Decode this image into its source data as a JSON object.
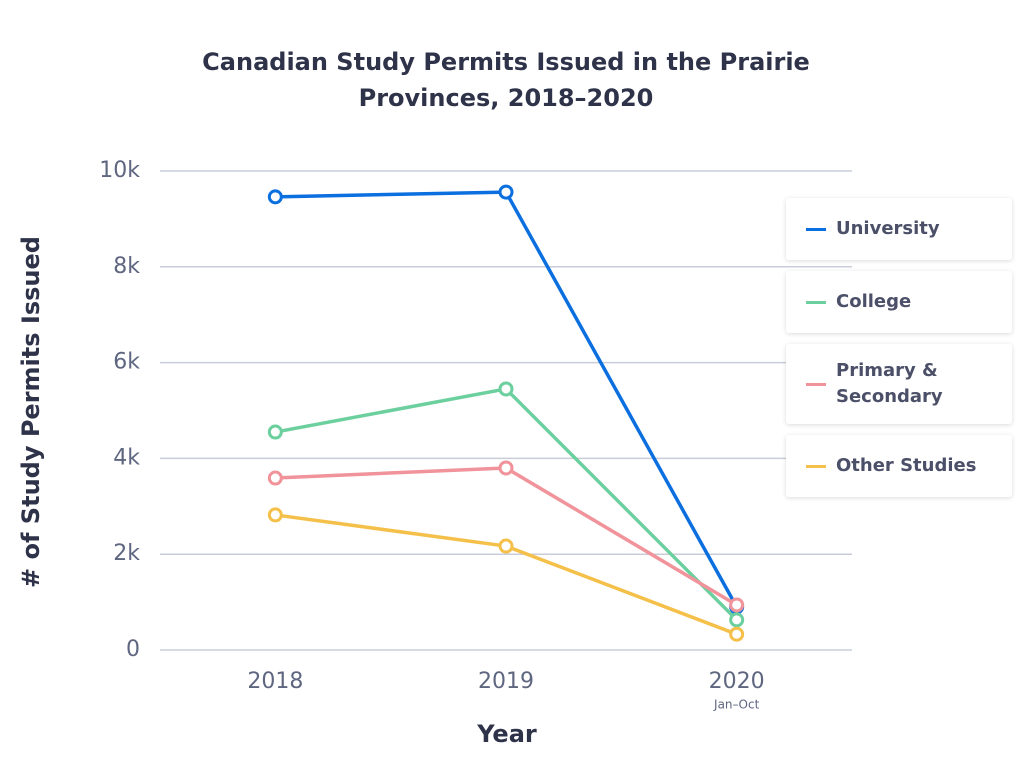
{
  "chart_data": {
    "type": "line",
    "title": "Canadian Study Permits Issued in the Prairie Provinces, 2018–2020",
    "x_label": "Year",
    "y_label": "# of Study Permits Issued",
    "categories": [
      "2018",
      "2019",
      "2020"
    ],
    "category_sublabels": [
      null,
      null,
      "Jan–Oct"
    ],
    "series": [
      {
        "name": "University",
        "color": "#0b6fe0",
        "values": [
          9460,
          9560,
          900
        ]
      },
      {
        "name": "College",
        "color": "#6ccf9e",
        "values": [
          4550,
          5450,
          630
        ]
      },
      {
        "name": "Primary & Secondary",
        "color": "#f0939a",
        "values": [
          3590,
          3800,
          940
        ]
      },
      {
        "name": "Other Studies",
        "color": "#f5c04a",
        "values": [
          2820,
          2170,
          330
        ]
      }
    ],
    "ylim": [
      0,
      10000
    ],
    "yticks": [
      0,
      {
        "value": 2000,
        "label": "2k"
      },
      {
        "value": 4000,
        "label": "4k"
      },
      {
        "value": 6000,
        "label": "6k"
      },
      {
        "value": 8000,
        "label": "8k"
      },
      {
        "value": 10000,
        "label": "10k"
      }
    ],
    "grid": true,
    "legend": "right"
  }
}
